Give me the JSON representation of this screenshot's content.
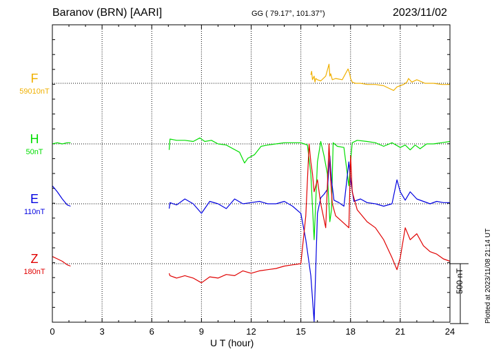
{
  "header": {
    "station": "Baranov (BRN)  [AARI]",
    "coords": "GG ( 79.17°, 101.37°)",
    "date": "2023/11/02"
  },
  "footer": {
    "plotted": "Plotted at 2023/11/08 21:14 UT"
  },
  "colors": {
    "F": "#f0b000",
    "H": "#00dd00",
    "E": "#0000e0",
    "Z": "#e00000"
  },
  "chart_data": {
    "type": "line",
    "xlabel": "U T (hour)",
    "xlim": [
      0,
      24
    ],
    "xticks": [
      "0",
      "3",
      "6",
      "9",
      "12",
      "15",
      "18",
      "21",
      "24"
    ],
    "scale_bar": "500 nT",
    "series": [
      {
        "name": "F",
        "baseline_label": "59010nT",
        "x": [
          15.6,
          15.65,
          15.7,
          15.8,
          15.85,
          15.9,
          16.0,
          16.2,
          16.5,
          16.7,
          16.75,
          16.8,
          16.9,
          17.1,
          17.5,
          17.85,
          17.95,
          18.0,
          18.1,
          18.3,
          18.6,
          19.0,
          19.5,
          20.0,
          20.3,
          20.6,
          20.8,
          21.0,
          21.2,
          21.4,
          21.5,
          21.7,
          22.0,
          22.5,
          23.0,
          23.5,
          24.0
        ],
        "values": [
          70,
          100,
          30,
          60,
          10,
          40,
          30,
          20,
          60,
          160,
          60,
          80,
          30,
          40,
          30,
          120,
          80,
          40,
          10,
          0,
          0,
          -10,
          -10,
          -20,
          -40,
          -60,
          -30,
          -20,
          -10,
          10,
          40,
          10,
          30,
          0,
          0,
          -10,
          -10
        ]
      },
      {
        "name": "H",
        "baseline_label": "50nT",
        "x": [
          0.0,
          0.3,
          0.6,
          0.9,
          1.1,
          7.05,
          7.1,
          7.5,
          8.0,
          8.5,
          8.9,
          9.2,
          9.6,
          10.0,
          10.5,
          10.9,
          11.3,
          11.6,
          11.8,
          12.2,
          12.6,
          13.0,
          13.5,
          14.0,
          14.5,
          15.0,
          15.2,
          15.4,
          15.6,
          15.8,
          16.0,
          16.2,
          16.4,
          16.6,
          16.75,
          16.85,
          16.95,
          17.2,
          17.6,
          17.9,
          18.0,
          18.1,
          18.4,
          19.0,
          19.5,
          20.0,
          20.5,
          21.0,
          21.3,
          21.6,
          21.9,
          22.2,
          22.6,
          23.0,
          23.5,
          24.0
        ],
        "values": [
          0,
          10,
          0,
          10,
          10,
          -50,
          40,
          30,
          30,
          20,
          50,
          20,
          30,
          0,
          -10,
          -40,
          -70,
          -160,
          -120,
          -90,
          -20,
          -10,
          0,
          10,
          10,
          10,
          0,
          -10,
          -250,
          -800,
          -150,
          20,
          -100,
          -250,
          -650,
          -550,
          10,
          -20,
          -30,
          -350,
          -150,
          10,
          30,
          20,
          10,
          -20,
          10,
          -30,
          -10,
          -50,
          -10,
          -40,
          0,
          0,
          10,
          20
        ]
      },
      {
        "name": "E",
        "baseline_label": "110nT",
        "x": [
          0.0,
          0.3,
          0.6,
          0.9,
          1.1,
          7.05,
          7.1,
          7.5,
          8.0,
          8.5,
          9.0,
          9.5,
          10.0,
          10.5,
          11.0,
          11.5,
          12.0,
          12.5,
          13.0,
          13.5,
          14.0,
          14.5,
          15.0,
          15.3,
          15.6,
          15.8,
          16.0,
          16.2,
          16.4,
          16.6,
          16.75,
          16.85,
          17.0,
          17.3,
          17.6,
          17.9,
          18.0,
          18.2,
          18.6,
          19.0,
          19.5,
          20.0,
          20.5,
          20.8,
          21.0,
          21.3,
          21.6,
          22.0,
          22.4,
          22.8,
          23.2,
          23.6,
          24.0
        ],
        "values": [
          150,
          100,
          40,
          -10,
          -20,
          -40,
          10,
          -10,
          40,
          0,
          -80,
          20,
          0,
          -40,
          40,
          0,
          10,
          20,
          0,
          0,
          20,
          -20,
          -80,
          -300,
          -600,
          -1200,
          -80,
          50,
          80,
          120,
          400,
          200,
          30,
          10,
          -20,
          350,
          200,
          20,
          40,
          10,
          0,
          -20,
          0,
          200,
          100,
          30,
          100,
          40,
          20,
          0,
          20,
          10,
          10
        ]
      },
      {
        "name": "Z",
        "baseline_label": "180nT",
        "x": [
          0.0,
          0.3,
          0.6,
          0.9,
          1.1,
          7.05,
          7.1,
          7.5,
          8.0,
          8.5,
          9.0,
          9.5,
          10.0,
          10.5,
          11.0,
          11.5,
          12.0,
          12.5,
          13.0,
          13.5,
          14.0,
          14.5,
          15.0,
          15.3,
          15.5,
          15.6,
          15.7,
          15.8,
          16.0,
          16.2,
          16.5,
          16.7,
          16.8,
          16.9,
          17.1,
          17.5,
          17.9,
          18.0,
          18.1,
          18.4,
          19.0,
          19.5,
          20.0,
          20.5,
          20.8,
          21.0,
          21.3,
          21.6,
          22.0,
          22.4,
          22.8,
          23.2,
          23.6,
          24.0
        ],
        "values": [
          60,
          40,
          20,
          -10,
          -20,
          -80,
          -100,
          -120,
          -100,
          -120,
          -160,
          -110,
          -120,
          -90,
          -100,
          -60,
          -80,
          -60,
          -50,
          -40,
          -20,
          -10,
          0,
          400,
          1000,
          850,
          750,
          600,
          700,
          500,
          300,
          1000,
          700,
          500,
          400,
          350,
          300,
          900,
          600,
          450,
          350,
          300,
          200,
          50,
          -50,
          50,
          300,
          200,
          250,
          150,
          100,
          80,
          40,
          20
        ]
      }
    ]
  }
}
